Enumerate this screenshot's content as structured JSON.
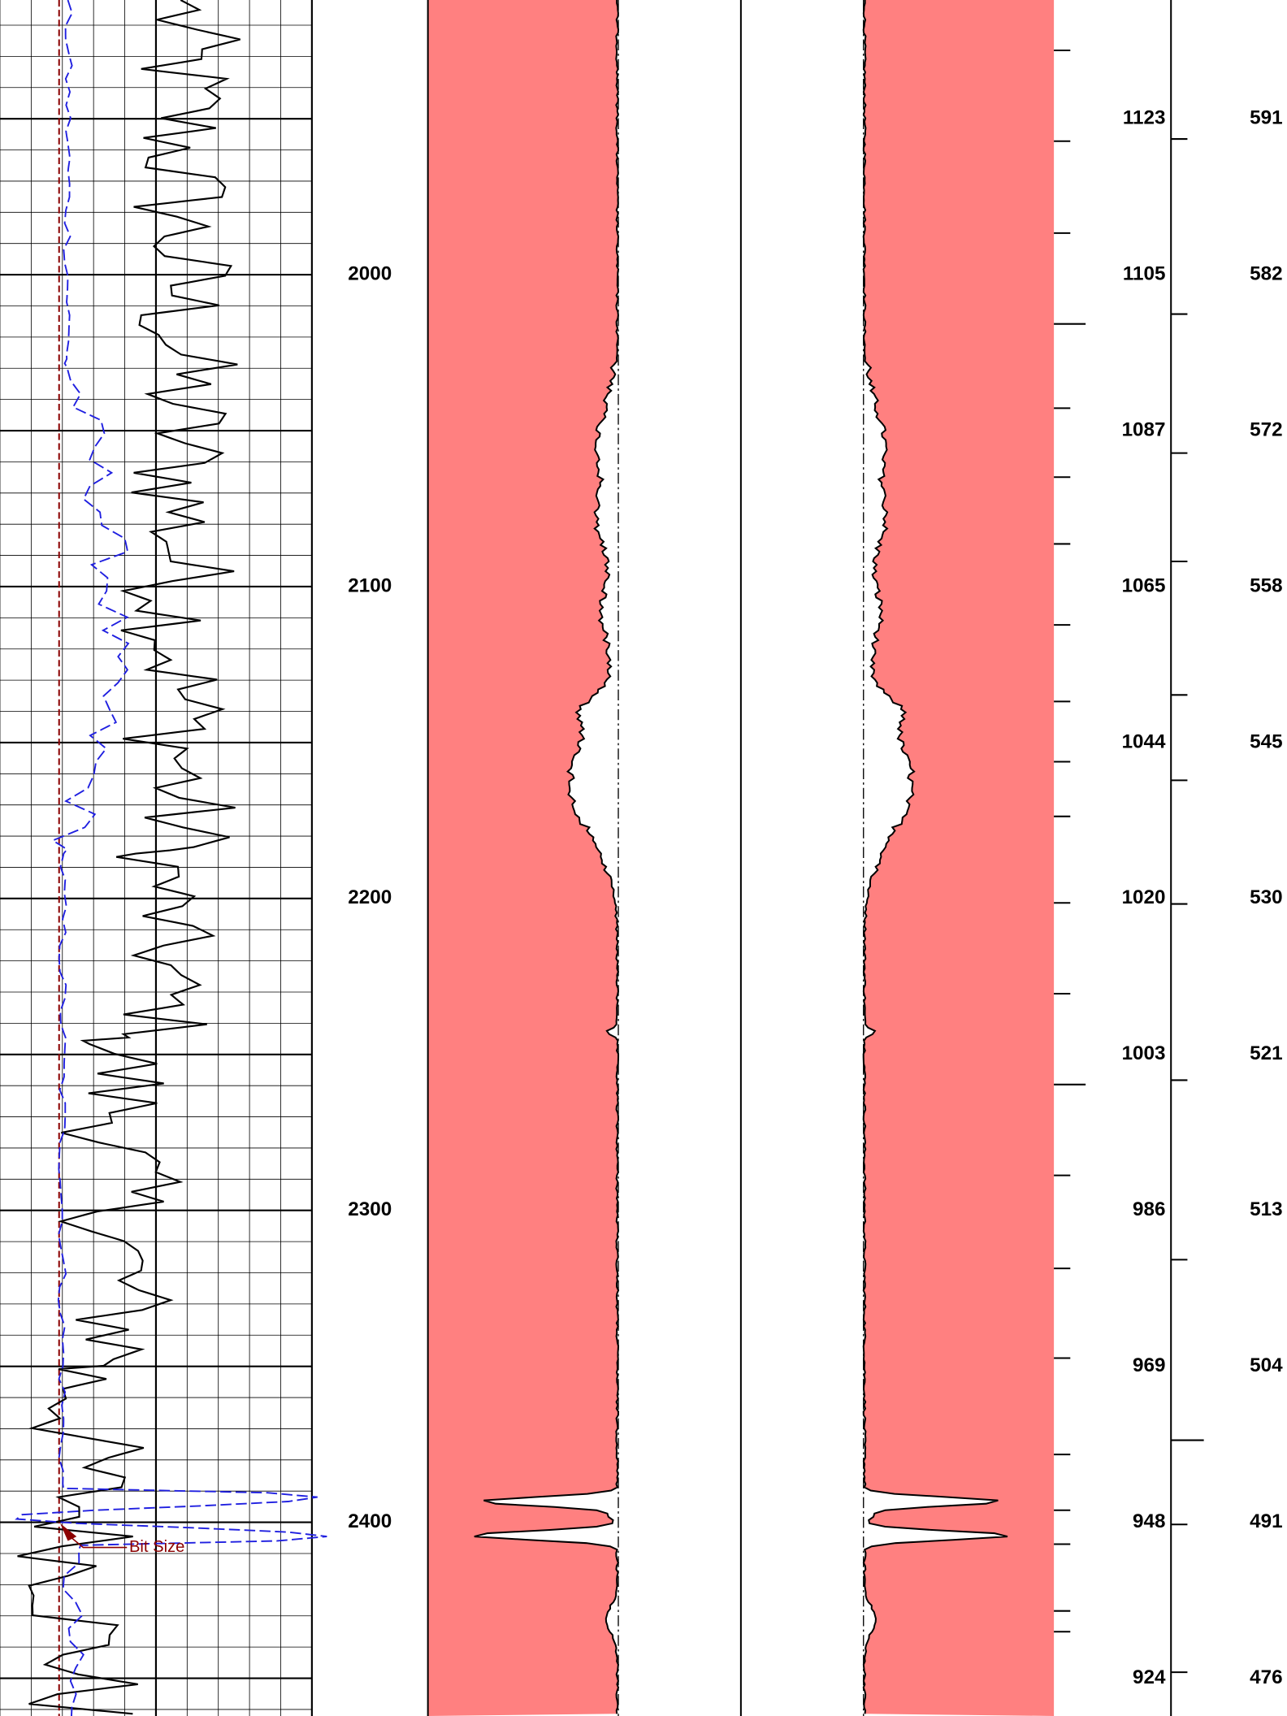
{
  "depth_track": {
    "labels": [
      "2000",
      "2100",
      "2200",
      "2300",
      "2400"
    ]
  },
  "scale_a": {
    "labels": [
      "1123",
      "1105",
      "1087",
      "1065",
      "1044",
      "1020",
      "1003",
      "986",
      "969",
      "948",
      "924"
    ]
  },
  "scale_b": {
    "labels": [
      "591",
      "582",
      "572",
      "558",
      "545",
      "530",
      "521",
      "513",
      "504",
      "491",
      "476"
    ]
  },
  "annotation": "Bit Size"
}
